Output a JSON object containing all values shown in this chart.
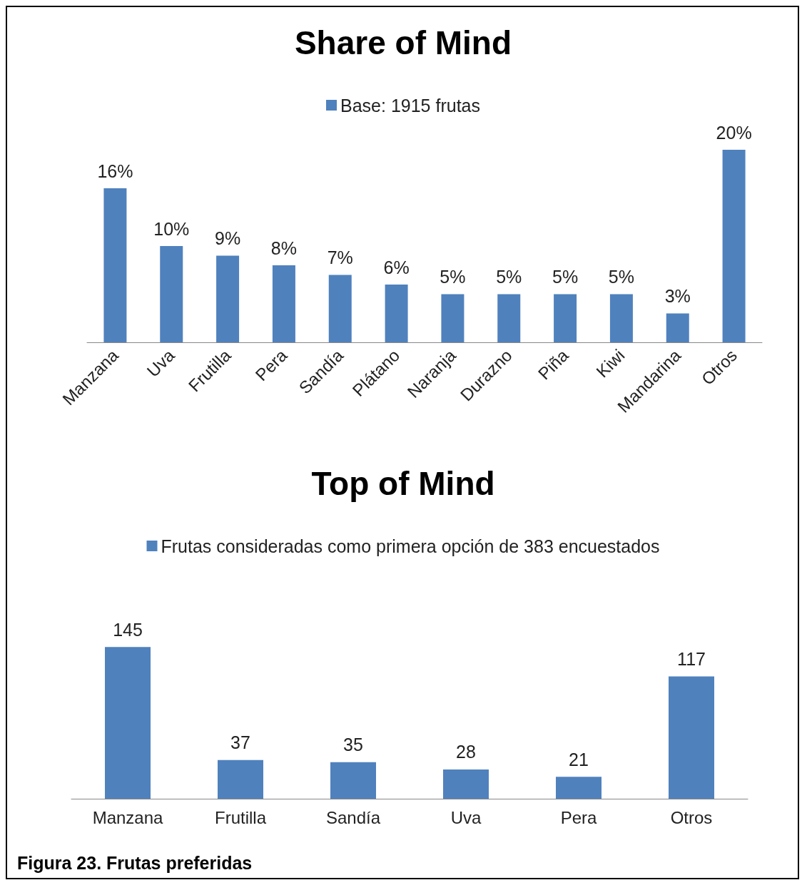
{
  "chart_data": [
    {
      "type": "bar",
      "title": "Share of Mind",
      "categories": [
        "Manzana",
        "Uva",
        "Frutilla",
        "Pera",
        "Sandía",
        "Plátano",
        "Naranja",
        "Durazno",
        "Piña",
        "Kiwi",
        "Mandarina",
        "Otros"
      ],
      "series": [
        {
          "name": "Base: 1915 frutas",
          "color": "#4f81bd",
          "values": [
            16,
            10,
            9,
            8,
            7,
            6,
            5,
            5,
            5,
            5,
            3,
            20
          ],
          "value_labels": [
            "16%",
            "10%",
            "9%",
            "8%",
            "7%",
            "6%",
            "5%",
            "5%",
            "5%",
            "5%",
            "3%",
            "20%"
          ]
        }
      ],
      "legend": "top",
      "tick_labels": "x"
    },
    {
      "type": "bar",
      "title": "Top of Mind",
      "categories": [
        "Manzana",
        "Frutilla",
        "Sandía",
        "Uva",
        "Pera",
        "Otros"
      ],
      "series": [
        {
          "name": "Frutas consideradas como primera opción de 383 encuestados",
          "color": "#4f81bd",
          "values": [
            145,
            37,
            35,
            28,
            21,
            117
          ]
        }
      ],
      "data_labels": true,
      "legend": "top",
      "tick_labels": "x",
      "annotations": [
        "Figura 23. Frutas preferidas"
      ]
    }
  ]
}
